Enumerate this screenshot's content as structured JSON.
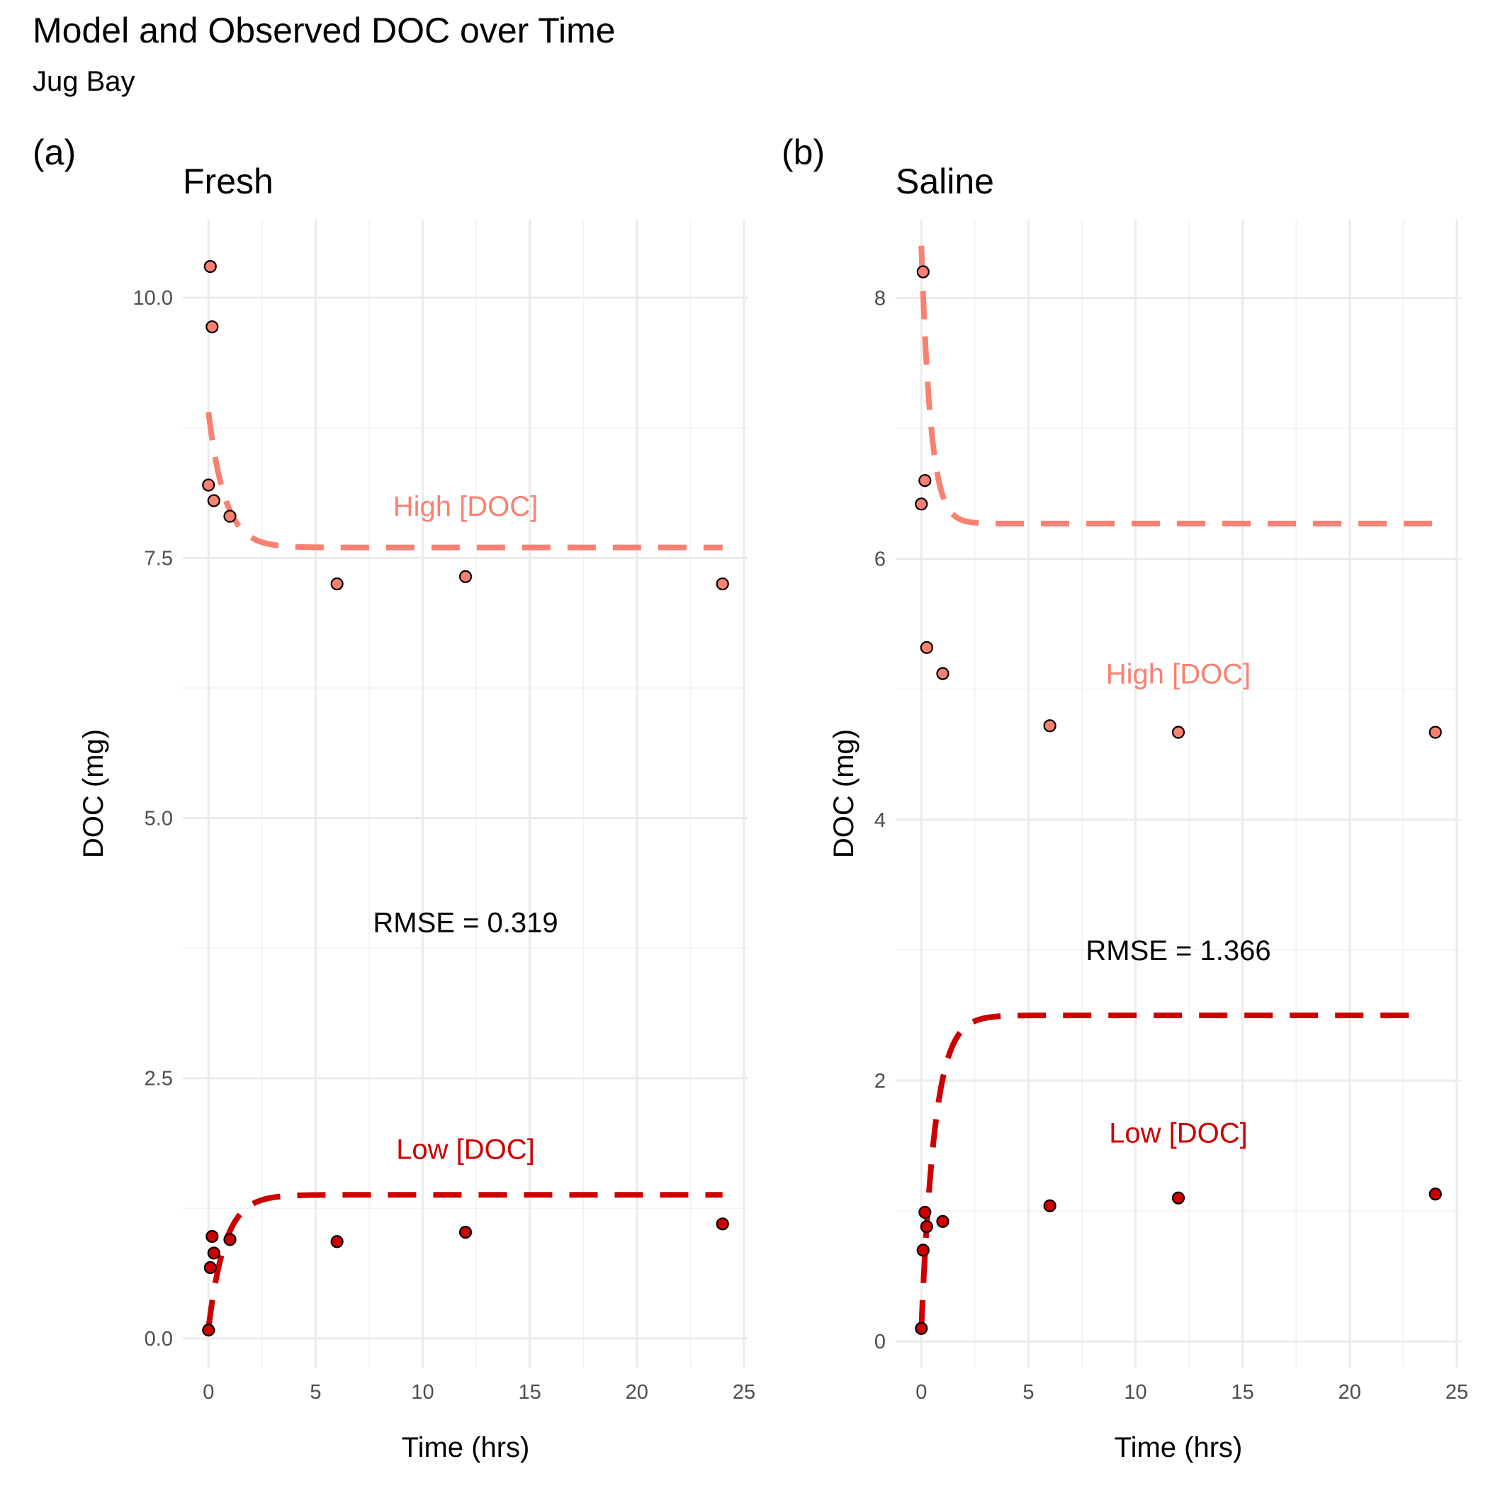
{
  "title": "Model and Observed DOC over Time",
  "subtitle": "Jug Bay",
  "colors": {
    "high": "#fa8072",
    "low": "#cc0000"
  },
  "chart_data": [
    {
      "type": "scatter",
      "tag": "(a)",
      "title": "Fresh",
      "xlabel": "Time (hrs)",
      "ylabel": "DOC (mg)",
      "xlim": [
        -1.2,
        25.2
      ],
      "ylim": [
        -0.28,
        10.75
      ],
      "xticks": [
        0,
        5,
        10,
        15,
        20,
        25
      ],
      "xtick_labels": [
        "0",
        "5",
        "10",
        "15",
        "20",
        "25"
      ],
      "yticks": [
        0,
        2.5,
        5,
        7.5,
        10
      ],
      "ytick_labels": [
        "0.0",
        "2.5",
        "5.0",
        "7.5",
        "10.0"
      ],
      "grid": true,
      "rmse_label": "RMSE = 0.319",
      "rmse_pos": [
        12,
        4.0
      ],
      "series": [
        {
          "name": "High [DOC]",
          "kind": "high",
          "label_pos": [
            12,
            8.0
          ],
          "observed": {
            "x": [
              0,
              0.083,
              0.167,
              0.25,
              1,
              6,
              12,
              24
            ],
            "y": [
              8.2,
              10.3,
              9.72,
              8.05,
              7.9,
              7.25,
              7.32,
              7.25
            ]
          },
          "model": {
            "x0": 0,
            "x1": 24,
            "y0": 8.9,
            "yinf": 7.6,
            "rate": 1.3
          }
        },
        {
          "name": "Low [DOC]",
          "kind": "low",
          "label_pos": [
            12,
            1.82
          ],
          "observed": {
            "x": [
              0,
              0.083,
              0.167,
              0.25,
              1,
              6,
              12,
              24
            ],
            "y": [
              0.08,
              0.68,
              0.98,
              0.82,
              0.95,
              0.93,
              1.02,
              1.1
            ],
            "note": ""
          },
          "model": {
            "x0": 0,
            "x1": 24,
            "y0": 0.1,
            "yinf": 1.38,
            "rate": 1.3
          }
        }
      ]
    },
    {
      "type": "scatter",
      "tag": "(b)",
      "title": "Saline",
      "xlabel": "Time (hrs)",
      "ylabel": "DOC (mg)",
      "xlim": [
        -1.2,
        25.2
      ],
      "ylim": [
        -0.2,
        8.6
      ],
      "xticks": [
        0,
        5,
        10,
        15,
        20,
        25
      ],
      "xtick_labels": [
        "0",
        "5",
        "10",
        "15",
        "20",
        "25"
      ],
      "yticks": [
        0,
        2,
        4,
        6,
        8
      ],
      "ytick_labels": [
        "0",
        "2",
        "4",
        "6",
        "8"
      ],
      "grid": true,
      "rmse_label": "RMSE = 1.366",
      "rmse_pos": [
        12,
        3.0
      ],
      "series": [
        {
          "name": "High [DOC]",
          "kind": "high",
          "label_pos": [
            12,
            5.12
          ],
          "observed": {
            "x": [
              0,
              0.083,
              0.167,
              0.25,
              1,
              6,
              12,
              24
            ],
            "y": [
              6.42,
              8.2,
              6.6,
              5.32,
              5.12,
              4.72,
              4.67,
              4.67
            ]
          },
          "model": {
            "x0": 0,
            "x1": 24,
            "y0": 8.4,
            "yinf": 6.27,
            "rate": 2.3
          }
        },
        {
          "name": "Low [DOC]",
          "kind": "low",
          "label_pos": [
            12,
            1.6
          ],
          "observed": {
            "x": [
              0,
              0.083,
              0.167,
              0.25,
              1,
              6,
              12,
              24
            ],
            "y": [
              0.1,
              0.7,
              0.99,
              0.88,
              0.92,
              1.04,
              1.1,
              1.13
            ]
          },
          "model": {
            "x0": 0,
            "x1": 23,
            "y0": 0.1,
            "yinf": 2.5,
            "rate": 1.6
          }
        }
      ]
    }
  ]
}
